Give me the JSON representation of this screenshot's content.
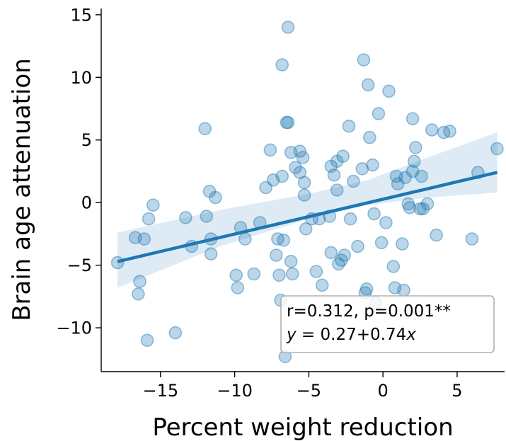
{
  "chart_data": {
    "type": "scatter",
    "xlabel": "Percent weight reduction",
    "ylabel": "Brain age attenuation",
    "xlim": [
      -19,
      8.2
    ],
    "ylim": [
      -13.5,
      15.5
    ],
    "xticks": [
      -15,
      -10,
      -5,
      0,
      5
    ],
    "xtick_labels": [
      "−15",
      "−10",
      "−5",
      "0",
      "5"
    ],
    "yticks": [
      -10,
      -5,
      0,
      5,
      10,
      15
    ],
    "ytick_labels": [
      "−10",
      "−5",
      "0",
      "5",
      "10",
      "15"
    ],
    "grid": false,
    "colors": {
      "point_fill": "#1f77b4",
      "point_stroke": "#1f77b4",
      "line": "#1f77b4",
      "band": "#1f77b4"
    },
    "points": {
      "x": [
        -17.9,
        -16.7,
        -16.5,
        -16.4,
        -16.1,
        -15.9,
        -15.8,
        -15.5,
        -14.0,
        -13.3,
        -12.9,
        -12.0,
        -11.9,
        -11.7,
        -11.6,
        -11.6,
        -11.3,
        -9.9,
        -9.8,
        -9.6,
        -9.3,
        -8.7,
        -8.3,
        -7.9,
        -7.6,
        -7.4,
        -7.2,
        -7.1,
        -7.0,
        -6.9,
        -6.8,
        -6.8,
        -6.7,
        -6.6,
        -6.5,
        -6.4,
        -6.4,
        -6.2,
        -6.2,
        -6.1,
        -5.9,
        -5.6,
        -5.6,
        -5.4,
        -5.3,
        -5.3,
        -5.2,
        -4.8,
        -4.5,
        -4.3,
        -4.1,
        -3.6,
        -3.5,
        -3.5,
        -3.3,
        -3.1,
        -3.1,
        -3.0,
        -2.8,
        -2.7,
        -2.6,
        -2.3,
        -2.2,
        -2.0,
        -1.7,
        -1.4,
        -1.3,
        -1.2,
        -1.1,
        -1.0,
        -0.9,
        -0.7,
        -0.6,
        -0.5,
        -0.3,
        -0.1,
        0.2,
        0.4,
        0.7,
        0.8,
        0.9,
        1.0,
        1.3,
        1.4,
        1.5,
        1.7,
        1.8,
        2.0,
        2.0,
        2.1,
        2.2,
        2.5,
        2.6,
        2.7,
        3.0,
        3.3,
        3.6,
        4.1,
        4.5,
        6.0,
        6.4,
        7.7
      ],
      "y": [
        -4.8,
        -2.8,
        -7.3,
        -6.3,
        -2.9,
        -11.0,
        -1.3,
        -0.2,
        -10.4,
        -1.2,
        -3.5,
        5.9,
        -1.1,
        0.9,
        -2.9,
        -4.1,
        0.4,
        -5.8,
        -6.8,
        -2.0,
        -2.9,
        -5.7,
        -1.6,
        1.2,
        4.2,
        1.8,
        -4.2,
        -2.9,
        -5.8,
        -7.8,
        2.1,
        11.0,
        -3.0,
        -12.3,
        6.4,
        14.0,
        6.4,
        -4.7,
        4.0,
        -5.7,
        2.8,
        2.4,
        4.1,
        3.6,
        1.6,
        0.6,
        -2.1,
        -1.3,
        -5.5,
        -1.3,
        -6.6,
        -1.1,
        2.9,
        -4.0,
        2.2,
        1.0,
        3.3,
        -4.9,
        -4.6,
        3.7,
        -4.2,
        6.1,
        -1.3,
        1.7,
        -3.5,
        2.7,
        11.4,
        -7.2,
        -6.9,
        9.4,
        5.2,
        3.0,
        -0.9,
        -8.0,
        7.1,
        -3.2,
        -1.6,
        8.9,
        -5.1,
        -6.8,
        2.1,
        1.5,
        -3.3,
        -7.0,
        2.0,
        -0.1,
        -0.4,
        2.5,
        6.7,
        3.3,
        4.4,
        -0.5,
        2.1,
        -0.5,
        -0.1,
        5.8,
        -2.6,
        5.6,
        5.7,
        -2.9,
        2.4,
        4.3
      ]
    },
    "fit": {
      "intercept": 0.27,
      "slope": 0.74,
      "x_range": [
        -17.9,
        7.7
      ],
      "ci": [
        {
          "x": -17.9,
          "lo": -6.8,
          "hi": -2.4
        },
        {
          "x": -11.0,
          "lo": -3.5,
          "hi": -0.6
        },
        {
          "x": -5.0,
          "lo": -1.3,
          "hi": 0.7
        },
        {
          "x": -1.0,
          "lo": -0.2,
          "hi": 1.8
        },
        {
          "x": 3.0,
          "lo": 0.4,
          "hi": 3.6
        },
        {
          "x": 7.7,
          "lo": 0.8,
          "hi": 5.6
        }
      ]
    },
    "annotation": {
      "line1": "r=0.312, p=0.001**",
      "line2_prefix": "y",
      "line2_mid": " = 0.27+0.74",
      "line2_var": "x",
      "position": "bottom-right"
    }
  }
}
